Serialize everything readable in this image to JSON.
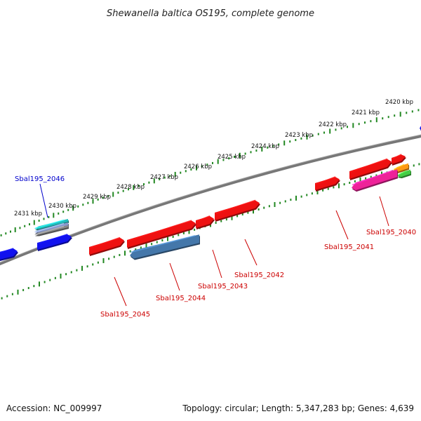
{
  "title": "Shewanella baltica OS195, complete genome",
  "footer": {
    "accession": "Accession: NC_009997",
    "topology": "Topology: circular; Length: 5,347,283 bp; Genes: 4,639"
  },
  "colors": {
    "backbone": "#777777",
    "tick": "#228822",
    "forward_gene_label": "#0000cc",
    "reverse_gene_label": "#cc0000",
    "gene_red": "#ee1111",
    "gene_blue": "#1111ee",
    "gene_steelblue": "#4477aa",
    "gene_cyan": "#22bbbb",
    "gene_pink": "#ee2299",
    "gene_orange": "#ff9911",
    "gene_green": "#44cc44"
  },
  "tick_labels": [
    "2420 kbp",
    "2421 kbp",
    "2422 kbp",
    "2423 kbp",
    "2424 kbp",
    "2425 kbp",
    "2426 kbp",
    "2427 kbp",
    "2428 kbp",
    "2429 kbp",
    "2430 kbp",
    "2431 kbp"
  ],
  "gene_labels": [
    {
      "id": "Sbal195_2046",
      "strand": "forward"
    },
    {
      "id": "Sbal195_2040",
      "strand": "reverse"
    },
    {
      "id": "Sbal195_2041",
      "strand": "reverse"
    },
    {
      "id": "Sbal195_2042",
      "strand": "reverse"
    },
    {
      "id": "Sbal195_2043",
      "strand": "reverse"
    },
    {
      "id": "Sbal195_2044",
      "strand": "reverse"
    },
    {
      "id": "Sbal195_2045",
      "strand": "reverse"
    }
  ]
}
